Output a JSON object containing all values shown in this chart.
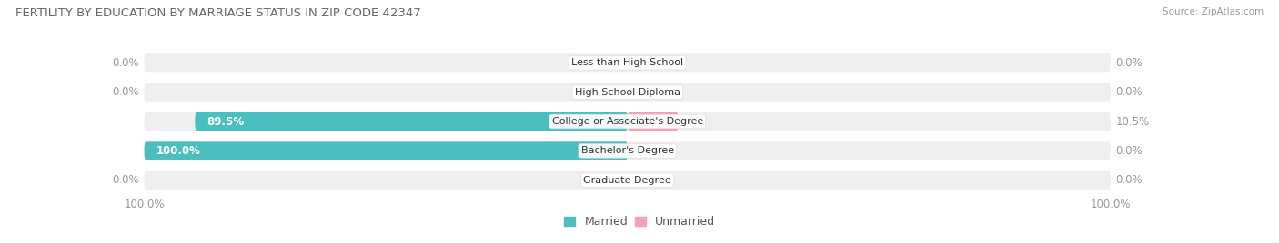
{
  "title": "FERTILITY BY EDUCATION BY MARRIAGE STATUS IN ZIP CODE 42347",
  "source": "Source: ZipAtlas.com",
  "categories": [
    "Less than High School",
    "High School Diploma",
    "College or Associate's Degree",
    "Bachelor's Degree",
    "Graduate Degree"
  ],
  "married": [
    0.0,
    0.0,
    89.5,
    100.0,
    0.0
  ],
  "unmarried": [
    0.0,
    0.0,
    10.5,
    0.0,
    0.0
  ],
  "married_color": "#4BBFBF",
  "unmarried_color": "#F08080",
  "unmarried_color2": "#F4A0B5",
  "bar_bg_color": "#EFEFEF",
  "bar_bg_color2": "#F8F8F8",
  "title_fontsize": 9.5,
  "source_fontsize": 7.5,
  "label_fontsize": 8.5,
  "category_fontsize": 8.0,
  "legend_fontsize": 9.0,
  "axis_label_left": "100.0%",
  "axis_label_right": "100.0%"
}
